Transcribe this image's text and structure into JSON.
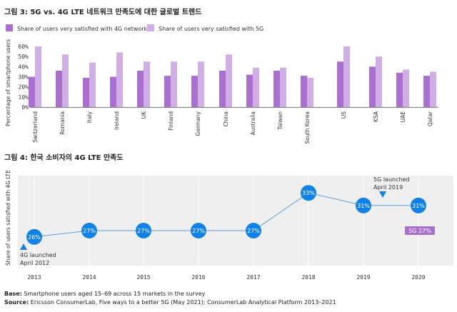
{
  "chart_data": [
    {
      "type": "bar",
      "title": "그림 3: 5G vs. 4G LTE 네트워크 만족도에 대한 글로벌 트렌드",
      "ylabel": "Percentage of smartphone users",
      "xlabel": "",
      "ylim": [
        0,
        60
      ],
      "yticks": [
        "0%",
        "10%",
        "20%",
        "30%",
        "40%",
        "50%",
        "60%"
      ],
      "grid": false,
      "legend_position": "top-left",
      "categories": [
        "Switzerland",
        "Romania",
        "Italy",
        "Ireland",
        "UK",
        "Finland",
        "Germany",
        "China",
        "Australia",
        "Taiwan",
        "South Korea",
        "US",
        "KSA",
        "UAE",
        "Qatar"
      ],
      "series": [
        {
          "name": "Share of users very satisfied with 4G network",
          "color": "#a970d0",
          "values": [
            30,
            36,
            29,
            30,
            36,
            31,
            31,
            36,
            32,
            36,
            31,
            45,
            40,
            34,
            31
          ]
        },
        {
          "name": "Share of users very satisfied with 5G",
          "color": "#d2aee6",
          "values": [
            60,
            52,
            44,
            54,
            45,
            45,
            45,
            52,
            39,
            39,
            29,
            60,
            50,
            37,
            35
          ]
        }
      ]
    },
    {
      "type": "line",
      "title": "그림 4:  한국 소비자의 4G LTE 만족도",
      "ylabel": "Share of users satisfied with 4G LTE",
      "xlabel": "",
      "grid": true,
      "color": "#1282e6",
      "categories": [
        "2013",
        "2014",
        "2015",
        "2016",
        "2017",
        "2018",
        "2019",
        "2020"
      ],
      "values": [
        26,
        27,
        27,
        27,
        27,
        33,
        31,
        31
      ],
      "point_labels": [
        "26%",
        "27%",
        "27%",
        "27%",
        "27%",
        "33%",
        "31%",
        "31%"
      ],
      "annotations": [
        {
          "text_line1": "4G launched",
          "text_line2": "April 2012"
        },
        {
          "text_line1": "5G launched",
          "text_line2": "April 2019"
        }
      ],
      "badge": {
        "text": "5G 27%",
        "color": "#a970d0"
      }
    }
  ],
  "footer": {
    "base_label": "Base:",
    "base_text": " Smartphone users aged 15–69 across 15 markets in the survey",
    "source_label": "Source:",
    "source_text": " Ericsson ConsumerLab, Five ways to a better 5G (May 2021); ConsumerLab Analytical Platform 2013–2021"
  }
}
